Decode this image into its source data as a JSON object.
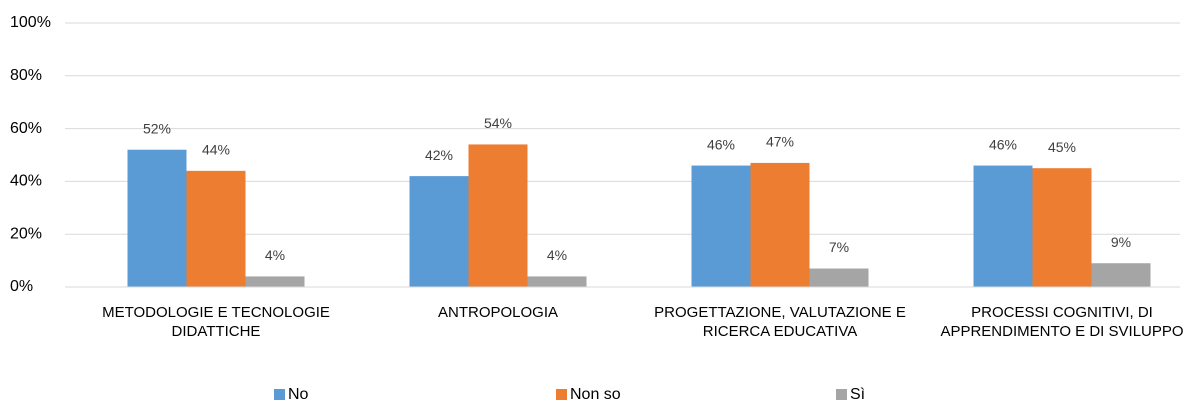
{
  "chart_data": {
    "type": "bar",
    "categories": [
      "METODOLOGIE E TECNOLOGIE DIDATTICHE",
      "ANTROPOLOGIA",
      "PROGETTAZIONE, VALUTAZIONE E RICERCA EDUCATIVA",
      "PROCESSI COGNITIVI, DI APPRENDIMENTO E DI SVILUPPO"
    ],
    "series": [
      {
        "name": "No",
        "color": "#5b9bd5",
        "values": [
          52,
          42,
          46,
          46
        ],
        "value_labels": [
          "52%",
          "42%",
          "46%",
          "46%"
        ]
      },
      {
        "name": "Non so",
        "color": "#ed7d31",
        "values": [
          44,
          54,
          47,
          45
        ],
        "value_labels": [
          "44%",
          "54%",
          "47%",
          "45%"
        ]
      },
      {
        "name": "Sì",
        "color": "#a5a5a5",
        "values": [
          4,
          4,
          7,
          9
        ],
        "value_labels": [
          "4%",
          "4%",
          "7%",
          "9%"
        ]
      }
    ],
    "ylim": [
      0,
      100
    ],
    "yticks": [
      {
        "value": 0,
        "label": "0%"
      },
      {
        "value": 20,
        "label": "20%"
      },
      {
        "value": 40,
        "label": "40%"
      },
      {
        "value": 60,
        "label": "60%"
      },
      {
        "value": 80,
        "label": "80%"
      },
      {
        "value": 100,
        "label": "100%"
      }
    ],
    "grid": true,
    "legend": "bottom"
  }
}
